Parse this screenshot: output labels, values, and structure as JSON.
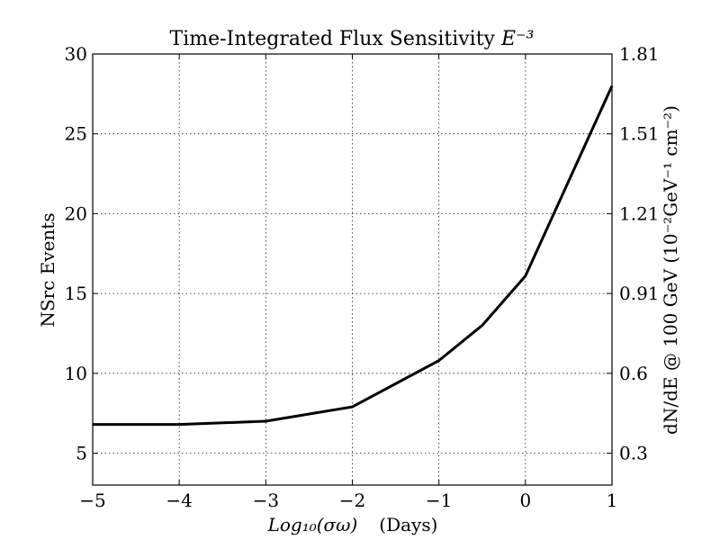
{
  "chart_data": {
    "type": "line",
    "title": "Time-Integrated Flux Sensitivity",
    "title_superscript": "E⁻³",
    "xlabel_main": "Log₁₀(σω)",
    "xlabel_unit": "(Days)",
    "ylabel": "NSrc Events",
    "ylabel_right": "dN/dE @ 100 GeV (10⁻²GeV⁻¹ cm⁻²)",
    "xlim": [
      -5,
      1
    ],
    "ylim": [
      3,
      30
    ],
    "xticks": [
      -5,
      -4,
      -3,
      -2,
      -1,
      0,
      1
    ],
    "xtick_labels": [
      "−5",
      "−4",
      "−3",
      "−2",
      "−1",
      "0",
      "1"
    ],
    "yticks": [
      5,
      10,
      15,
      20,
      25,
      30
    ],
    "ytick_labels": [
      "5",
      "10",
      "15",
      "20",
      "25",
      "30"
    ],
    "yticks_right": [
      5,
      10,
      15,
      20,
      25,
      30
    ],
    "ytick_labels_right": [
      "0.3",
      "0.6",
      "0.91",
      "1.21",
      "1.51",
      "1.81"
    ],
    "grid": true,
    "series": [
      {
        "color": "#000000",
        "x": [
          -5,
          -4,
          -3,
          -2,
          -1,
          -0.5,
          0,
          1
        ],
        "y": [
          6.8,
          6.8,
          7.0,
          7.9,
          10.8,
          13.0,
          16.1,
          28.0
        ]
      }
    ]
  }
}
